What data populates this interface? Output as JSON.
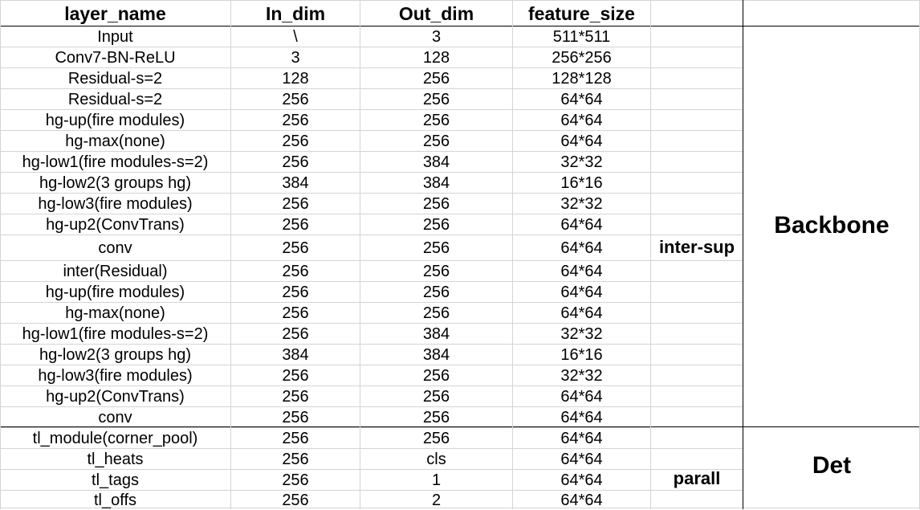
{
  "headers": [
    "layer_name",
    "In_dim",
    "Out_dim",
    "feature_size"
  ],
  "rows": [
    [
      "Input",
      "\\",
      "3",
      "511*511"
    ],
    [
      "Conv7-BN-ReLU",
      "3",
      "128",
      "256*256"
    ],
    [
      "Residual-s=2",
      "128",
      "256",
      "128*128"
    ],
    [
      "Residual-s=2",
      "256",
      "256",
      "64*64"
    ],
    [
      "hg-up(fire modules)",
      "256",
      "256",
      "64*64"
    ],
    [
      "hg-max(none)",
      "256",
      "256",
      "64*64"
    ],
    [
      "hg-low1(fire modules-s=2)",
      "256",
      "384",
      "32*32"
    ],
    [
      "hg-low2(3 groups hg)",
      "384",
      "384",
      "16*16"
    ],
    [
      "hg-low3(fire modules)",
      "256",
      "256",
      "32*32"
    ],
    [
      "hg-up2(ConvTrans)",
      "256",
      "256",
      "64*64"
    ],
    [
      "conv",
      "256",
      "256",
      "64*64"
    ],
    [
      "inter(Residual)",
      "256",
      "256",
      "64*64"
    ],
    [
      "hg-up(fire modules)",
      "256",
      "256",
      "64*64"
    ],
    [
      "hg-max(none)",
      "256",
      "256",
      "64*64"
    ],
    [
      "hg-low1(fire modules-s=2)",
      "256",
      "384",
      "32*32"
    ],
    [
      "hg-low2(3 groups hg)",
      "384",
      "384",
      "16*16"
    ],
    [
      "hg-low3(fire modules)",
      "256",
      "256",
      "32*32"
    ],
    [
      "hg-up2(ConvTrans)",
      "256",
      "256",
      "64*64"
    ],
    [
      "conv",
      "256",
      "256",
      "64*64"
    ],
    [
      "tl_module(corner_pool)",
      "256",
      "256",
      "64*64"
    ],
    [
      "tl_heats",
      "256",
      "cls",
      "64*64"
    ],
    [
      "tl_tags",
      "256",
      "1",
      "64*64"
    ],
    [
      "tl_offs",
      "256",
      "2",
      "64*64"
    ]
  ],
  "annotations": {
    "inter_sup": "inter-sup",
    "parall": "parall"
  },
  "groups": {
    "backbone": "Backbone",
    "det": "Det"
  }
}
